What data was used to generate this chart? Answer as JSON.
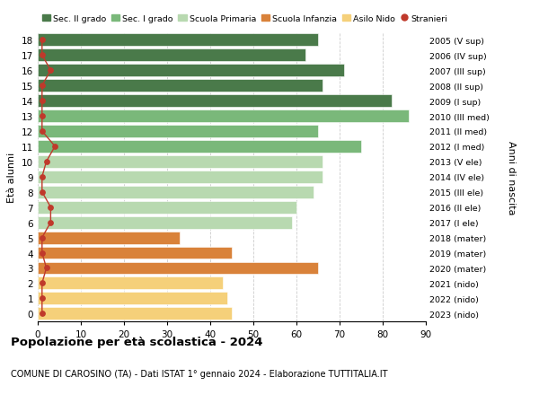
{
  "ages": [
    18,
    17,
    16,
    15,
    14,
    13,
    12,
    11,
    10,
    9,
    8,
    7,
    6,
    5,
    4,
    3,
    2,
    1,
    0
  ],
  "right_labels": [
    "2005 (V sup)",
    "2006 (IV sup)",
    "2007 (III sup)",
    "2008 (II sup)",
    "2009 (I sup)",
    "2010 (III med)",
    "2011 (II med)",
    "2012 (I med)",
    "2013 (V ele)",
    "2014 (IV ele)",
    "2015 (III ele)",
    "2016 (II ele)",
    "2017 (I ele)",
    "2018 (mater)",
    "2019 (mater)",
    "2020 (mater)",
    "2021 (nido)",
    "2022 (nido)",
    "2023 (nido)"
  ],
  "bar_values": [
    65,
    62,
    71,
    66,
    82,
    86,
    65,
    75,
    66,
    66,
    64,
    60,
    59,
    33,
    45,
    65,
    43,
    44,
    45
  ],
  "bar_colors": [
    "#4a7a4a",
    "#4a7a4a",
    "#4a7a4a",
    "#4a7a4a",
    "#4a7a4a",
    "#7ab87a",
    "#7ab87a",
    "#7ab87a",
    "#b8d9b0",
    "#b8d9b0",
    "#b8d9b0",
    "#b8d9b0",
    "#b8d9b0",
    "#d9823a",
    "#d9823a",
    "#d9823a",
    "#f5d07a",
    "#f5d07a",
    "#f5d07a"
  ],
  "stranieri_values": [
    1,
    1,
    3,
    1,
    1,
    1,
    1,
    4,
    2,
    1,
    1,
    3,
    3,
    1,
    1,
    2,
    1,
    1,
    1
  ],
  "stranieri_color": "#c0392b",
  "legend_labels": [
    "Sec. II grado",
    "Sec. I grado",
    "Scuola Primaria",
    "Scuola Infanzia",
    "Asilo Nido",
    "Stranieri"
  ],
  "legend_colors": [
    "#4a7a4a",
    "#7ab87a",
    "#b8d9b0",
    "#d9823a",
    "#f5d07a",
    "#c0392b"
  ],
  "title_bold": "Popolazione per età scolastica - 2024",
  "subtitle": "COMUNE DI CAROSINO (TA) - Dati ISTAT 1° gennaio 2024 - Elaborazione TUTTITALIA.IT",
  "ylabel": "Età alunni",
  "right_ylabel": "Anni di nascita",
  "xlim": [
    0,
    90
  ],
  "xticks": [
    0,
    10,
    20,
    30,
    40,
    50,
    60,
    70,
    80,
    90
  ],
  "background_color": "#ffffff",
  "grid_color": "#cccccc",
  "bar_height": 0.82
}
